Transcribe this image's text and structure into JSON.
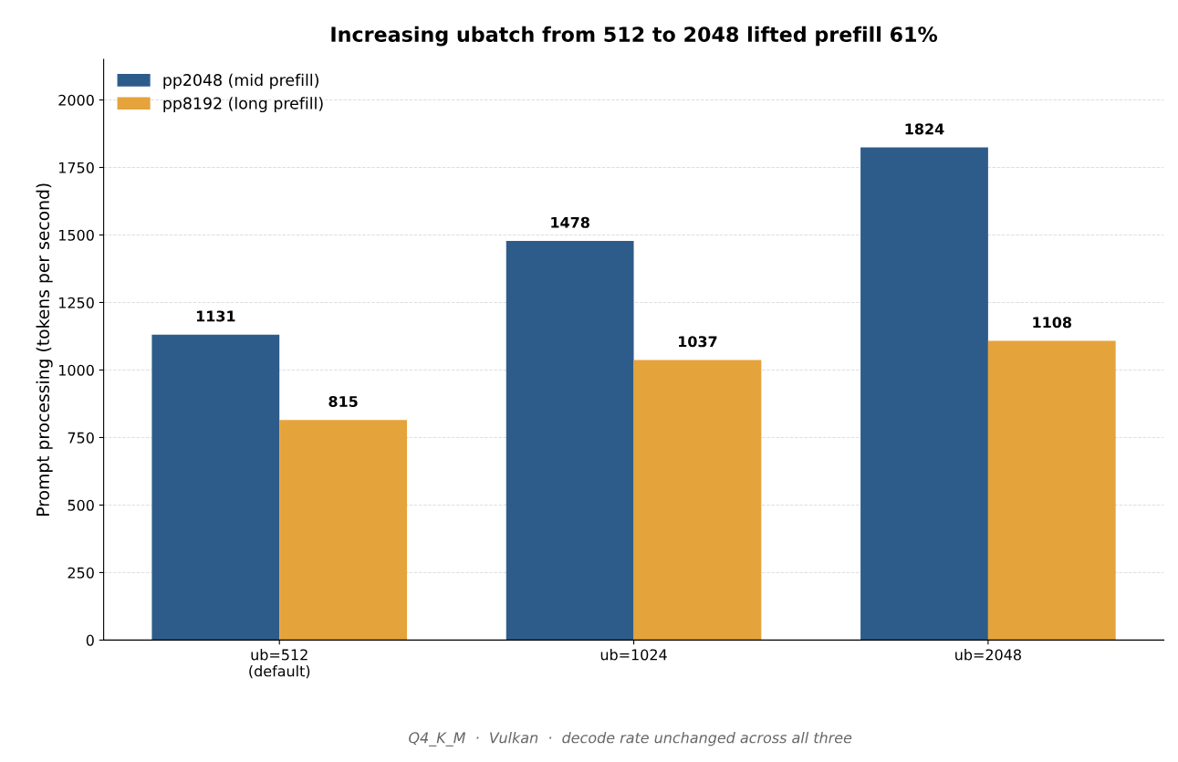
{
  "chart_data": {
    "type": "bar",
    "title": "Increasing ubatch from 512 to 2048 lifted prefill 61%",
    "ylabel": "Prompt processing (tokens per second)",
    "categories": [
      "ub=512\n(default)",
      "ub=1024",
      "ub=2048"
    ],
    "series": [
      {
        "name": "pp2048 (mid prefill)",
        "color": "#2e5c8a",
        "values": [
          1131,
          1478,
          1824
        ]
      },
      {
        "name": "pp8192 (long prefill)",
        "color": "#e5a33b",
        "values": [
          815,
          1037,
          1108
        ]
      }
    ],
    "ylim": [
      0,
      2150
    ],
    "yticks": [
      0,
      250,
      500,
      750,
      1000,
      1250,
      1500,
      1750,
      2000
    ],
    "grid": "y",
    "legend": "top left",
    "data_labels": true,
    "annotations": [
      "Q4_K_M  ·  Vulkan  ·  decode rate unchanged across all three"
    ]
  }
}
